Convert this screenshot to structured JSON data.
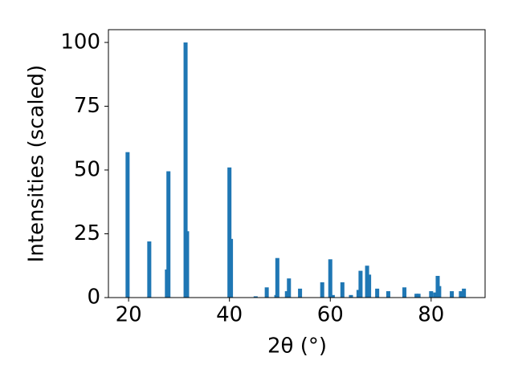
{
  "chart_data": {
    "type": "bar",
    "x": [
      19.8,
      24.1,
      27.6,
      27.9,
      31.3,
      31.6,
      40.0,
      40.3,
      45.2,
      47.4,
      49.3,
      49.5,
      51.4,
      51.8,
      54.0,
      58.4,
      60.0,
      60.5,
      62.4,
      64.1,
      65.6,
      66.0,
      67.3,
      67.7,
      69.3,
      71.5,
      74.7,
      77.1,
      77.5,
      80.0,
      80.8,
      81.3,
      81.6,
      84.1,
      85.9,
      86.5
    ],
    "values": [
      57,
      22,
      11,
      49.5,
      100,
      26,
      51,
      23,
      0.5,
      4,
      1,
      15.5,
      2.5,
      7.5,
      3.5,
      6,
      15,
      1,
      6,
      1,
      3,
      10.5,
      12.5,
      9,
      3.5,
      2.5,
      4,
      1.5,
      1.5,
      2.5,
      2,
      8.5,
      4.5,
      2.5,
      2.5,
      3.5
    ],
    "color": "#1f77b4",
    "xlabel": "2θ (°)",
    "ylabel": "Intensities (scaled)",
    "xlim": [
      16,
      90.7
    ],
    "ylim": [
      0,
      105
    ],
    "xticks": [
      20,
      40,
      60,
      80
    ],
    "yticks": [
      0,
      25,
      50,
      75,
      100
    ]
  }
}
